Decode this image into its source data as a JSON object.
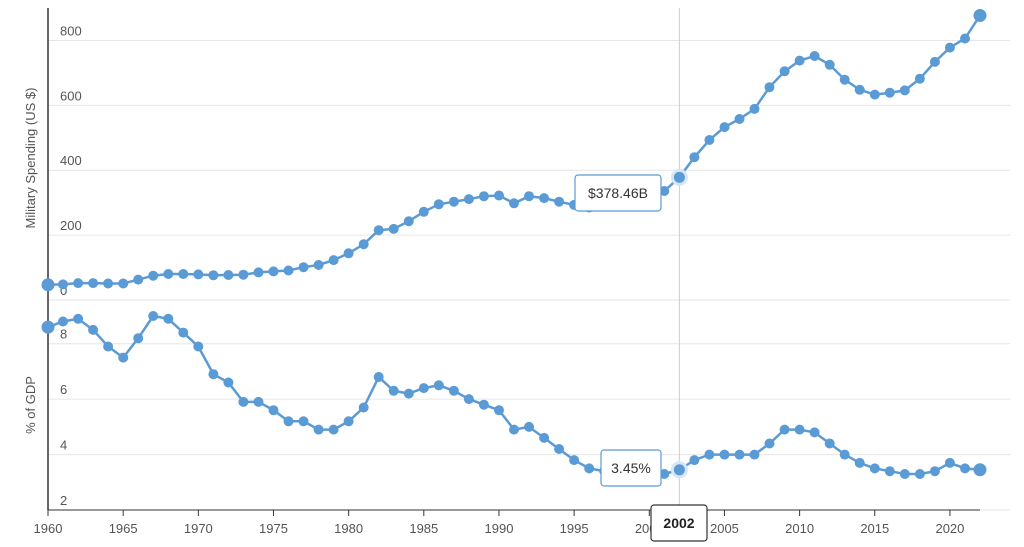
{
  "colors": {
    "series": "#5b9bd5",
    "grid": "#e6e6e6",
    "axis": "#333333",
    "hover_line": "#cccccc"
  },
  "chart_data": [
    {
      "type": "line",
      "ylabel": "Military Spending (US $)",
      "ylim": [
        0,
        900
      ],
      "yticks": [
        "0",
        "200",
        "400",
        "600",
        "800"
      ],
      "grid": true,
      "series": [
        {
          "x": [
            1960,
            1961,
            1962,
            1963,
            1964,
            1965,
            1966,
            1967,
            1968,
            1969,
            1970,
            1971,
            1972,
            1973,
            1974,
            1975,
            1976,
            1977,
            1978,
            1979,
            1980,
            1981,
            1982,
            1983,
            1984,
            1985,
            1986,
            1987,
            1988,
            1989,
            1990,
            1991,
            1992,
            1993,
            1994,
            1995,
            1996,
            1997,
            1998,
            1999,
            2000,
            2001,
            2002,
            2003,
            2004,
            2005,
            2006,
            2007,
            2008,
            2009,
            2010,
            2011,
            2012,
            2013,
            2014,
            2015,
            2016,
            2017,
            2018,
            2019,
            2020,
            2021,
            2022
          ],
          "values": [
            47,
            48,
            52,
            52,
            51,
            51,
            63,
            75,
            80,
            80,
            79,
            76,
            77,
            78,
            85,
            88,
            91,
            101,
            108,
            123,
            144,
            172,
            215,
            219,
            243,
            272,
            295,
            303,
            311,
            320,
            322,
            298,
            320,
            314,
            303,
            293,
            285,
            289,
            289,
            297,
            320,
            336,
            378,
            440,
            493,
            533,
            558,
            589,
            656,
            705,
            738,
            752,
            725,
            679,
            648,
            633,
            639,
            646,
            682,
            734,
            778,
            806,
            877
          ]
        }
      ],
      "tooltip": "$378.46B"
    },
    {
      "type": "line",
      "ylabel": "% of GDP",
      "ylim": [
        2,
        9
      ],
      "yticks": [
        "2",
        "4",
        "6",
        "8"
      ],
      "grid": true,
      "series": [
        {
          "x": [
            1960,
            1961,
            1962,
            1963,
            1964,
            1965,
            1966,
            1967,
            1968,
            1969,
            1970,
            1971,
            1972,
            1973,
            1974,
            1975,
            1976,
            1977,
            1978,
            1979,
            1980,
            1981,
            1982,
            1983,
            1984,
            1985,
            1986,
            1987,
            1988,
            1989,
            1990,
            1991,
            1992,
            1993,
            1994,
            1995,
            1996,
            1997,
            1998,
            1999,
            2000,
            2001,
            2002,
            2003,
            2004,
            2005,
            2006,
            2007,
            2008,
            2009,
            2010,
            2011,
            2012,
            2013,
            2014,
            2015,
            2016,
            2017,
            2018,
            2019,
            2020,
            2021,
            2022
          ],
          "values": [
            8.6,
            8.8,
            8.9,
            8.5,
            7.9,
            7.5,
            8.2,
            9.0,
            8.9,
            8.4,
            7.9,
            6.9,
            6.6,
            5.9,
            5.9,
            5.6,
            5.2,
            5.2,
            4.9,
            4.9,
            5.2,
            5.7,
            6.8,
            6.3,
            6.2,
            6.4,
            6.5,
            6.3,
            6.0,
            5.8,
            5.6,
            4.9,
            5.0,
            4.6,
            4.2,
            3.8,
            3.5,
            3.4,
            3.3,
            3.2,
            3.1,
            3.3,
            3.45,
            3.8,
            4.0,
            4.0,
            4.0,
            4.0,
            4.4,
            4.9,
            4.9,
            4.8,
            4.4,
            4.0,
            3.7,
            3.5,
            3.4,
            3.3,
            3.3,
            3.4,
            3.7,
            3.5,
            3.45
          ]
        }
      ],
      "tooltip": "3.45%"
    }
  ],
  "x_axis": {
    "ticks": [
      "1960",
      "1965",
      "1970",
      "1975",
      "1980",
      "1985",
      "1990",
      "1995",
      "2000",
      "2005",
      "2010",
      "2015",
      "2020"
    ]
  },
  "hover": {
    "year": "2002"
  }
}
